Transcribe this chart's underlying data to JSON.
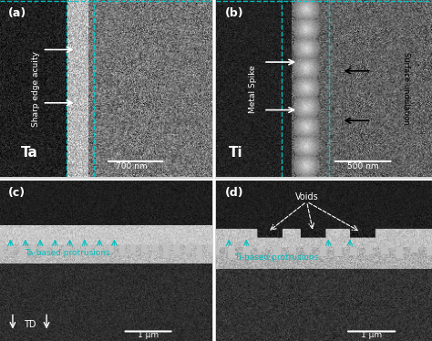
{
  "fig_width": 4.74,
  "fig_height": 3.74,
  "dpi": 100,
  "bg_color": "#000000",
  "panel_labels": [
    "(a)",
    "(b)",
    "(c)",
    "(d)"
  ],
  "panel_label_color": "white",
  "panel_label_fontsize": 9,
  "label_a": "Ta",
  "label_b": "Ti",
  "label_a_fontsize": 10,
  "label_b_fontsize": 10,
  "scalebar_a": "700 nm",
  "scalebar_b": "500 nm",
  "scalebar_cd": "1 μm",
  "text_a": "Sharp edge acuity",
  "text_b_left": "Metal Spike",
  "text_b_right": "Surface undulation",
  "text_c": "Ta-based protrusions",
  "text_d_top": "Voids",
  "text_d_bot": "Ti-based protrusions",
  "text_c_td": "TD",
  "cyan_color": "#00BFBF",
  "arrow_white": "#FFFFFF",
  "arrow_black": "#000000",
  "dashed_line_color": "#00CFCF"
}
